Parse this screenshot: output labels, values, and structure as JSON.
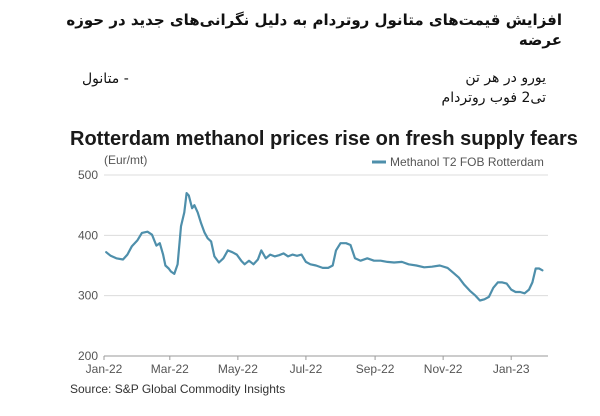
{
  "header": {
    "fa_title": "افزایش قیمت‌های متانول روتردام به دلیل نگرانی‌های جدید در حوزه عرضه",
    "fa_series_label": "- متانول",
    "fa_unit_line1": "یورو در هر تن",
    "fa_unit_line2": "تی2 فوب روتردام"
  },
  "source": "Source: S&P Global Commodity Insights",
  "chart_data": {
    "type": "line",
    "title": "Rotterdam methanol prices rise on fresh supply fears",
    "ylabel": "(Eur/mt)",
    "xlabel": "",
    "ylim": [
      200,
      500
    ],
    "yticks": [
      200,
      300,
      400,
      500
    ],
    "xlim": [
      "2022-01-01",
      "2023-02-03"
    ],
    "xticks": [
      "2022-01-01",
      "2022-03-01",
      "2022-05-01",
      "2022-07-01",
      "2022-09-01",
      "2022-11-01",
      "2023-01-01"
    ],
    "xtick_labels": [
      "Jan-22",
      "Mar-22",
      "May-22",
      "Jul-22",
      "Sep-22",
      "Nov-22",
      "Jan-23"
    ],
    "grid": "horizontal",
    "legend": "top-right",
    "series": [
      {
        "name": "Methanol T2 FOB Rotterdam",
        "color": "#4e8fab",
        "points": [
          [
            "2022-01-03",
            372
          ],
          [
            "2022-01-07",
            366
          ],
          [
            "2022-01-12",
            362
          ],
          [
            "2022-01-18",
            360
          ],
          [
            "2022-01-22",
            368
          ],
          [
            "2022-01-26",
            382
          ],
          [
            "2022-01-31",
            392
          ],
          [
            "2022-02-04",
            404
          ],
          [
            "2022-02-09",
            406
          ],
          [
            "2022-02-13",
            401
          ],
          [
            "2022-02-17",
            383
          ],
          [
            "2022-02-20",
            387
          ],
          [
            "2022-02-23",
            368
          ],
          [
            "2022-02-25",
            350
          ],
          [
            "2022-02-28",
            345
          ],
          [
            "2022-03-02",
            340
          ],
          [
            "2022-03-05",
            336
          ],
          [
            "2022-03-08",
            352
          ],
          [
            "2022-03-11",
            415
          ],
          [
            "2022-03-14",
            438
          ],
          [
            "2022-03-16",
            470
          ],
          [
            "2022-03-18",
            466
          ],
          [
            "2022-03-21",
            445
          ],
          [
            "2022-03-23",
            450
          ],
          [
            "2022-03-26",
            438
          ],
          [
            "2022-03-29",
            420
          ],
          [
            "2022-04-01",
            405
          ],
          [
            "2022-04-04",
            395
          ],
          [
            "2022-04-07",
            390
          ],
          [
            "2022-04-10",
            365
          ],
          [
            "2022-04-14",
            355
          ],
          [
            "2022-04-18",
            362
          ],
          [
            "2022-04-22",
            375
          ],
          [
            "2022-04-26",
            372
          ],
          [
            "2022-04-30",
            368
          ],
          [
            "2022-05-04",
            358
          ],
          [
            "2022-05-07",
            352
          ],
          [
            "2022-05-11",
            358
          ],
          [
            "2022-05-15",
            352
          ],
          [
            "2022-05-19",
            360
          ],
          [
            "2022-05-22",
            375
          ],
          [
            "2022-05-26",
            362
          ],
          [
            "2022-05-30",
            368
          ],
          [
            "2022-06-03",
            365
          ],
          [
            "2022-06-07",
            367
          ],
          [
            "2022-06-11",
            370
          ],
          [
            "2022-06-15",
            365
          ],
          [
            "2022-06-19",
            368
          ],
          [
            "2022-06-23",
            366
          ],
          [
            "2022-06-27",
            368
          ],
          [
            "2022-07-01",
            356
          ],
          [
            "2022-07-05",
            352
          ],
          [
            "2022-07-10",
            350
          ],
          [
            "2022-07-16",
            346
          ],
          [
            "2022-07-21",
            346
          ],
          [
            "2022-07-25",
            350
          ],
          [
            "2022-07-28",
            375
          ],
          [
            "2022-08-01",
            387
          ],
          [
            "2022-08-06",
            387
          ],
          [
            "2022-08-10",
            384
          ],
          [
            "2022-08-14",
            362
          ],
          [
            "2022-08-19",
            358
          ],
          [
            "2022-08-25",
            362
          ],
          [
            "2022-08-31",
            358
          ],
          [
            "2022-09-06",
            358
          ],
          [
            "2022-09-12",
            356
          ],
          [
            "2022-09-18",
            355
          ],
          [
            "2022-09-25",
            356
          ],
          [
            "2022-10-01",
            352
          ],
          [
            "2022-10-08",
            350
          ],
          [
            "2022-10-15",
            347
          ],
          [
            "2022-10-22",
            348
          ],
          [
            "2022-10-29",
            350
          ],
          [
            "2022-11-05",
            346
          ],
          [
            "2022-11-10",
            338
          ],
          [
            "2022-11-15",
            330
          ],
          [
            "2022-11-20",
            318
          ],
          [
            "2022-11-25",
            308
          ],
          [
            "2022-11-30",
            300
          ],
          [
            "2022-12-04",
            292
          ],
          [
            "2022-12-08",
            294
          ],
          [
            "2022-12-12",
            298
          ],
          [
            "2022-12-16",
            313
          ],
          [
            "2022-12-20",
            322
          ],
          [
            "2022-12-24",
            322
          ],
          [
            "2022-12-28",
            320
          ],
          [
            "2023-01-01",
            310
          ],
          [
            "2023-01-05",
            306
          ],
          [
            "2023-01-09",
            306
          ],
          [
            "2023-01-13",
            304
          ],
          [
            "2023-01-17",
            310
          ],
          [
            "2023-01-20",
            322
          ],
          [
            "2023-01-23",
            345
          ],
          [
            "2023-01-26",
            345
          ],
          [
            "2023-01-29",
            342
          ]
        ]
      }
    ]
  }
}
